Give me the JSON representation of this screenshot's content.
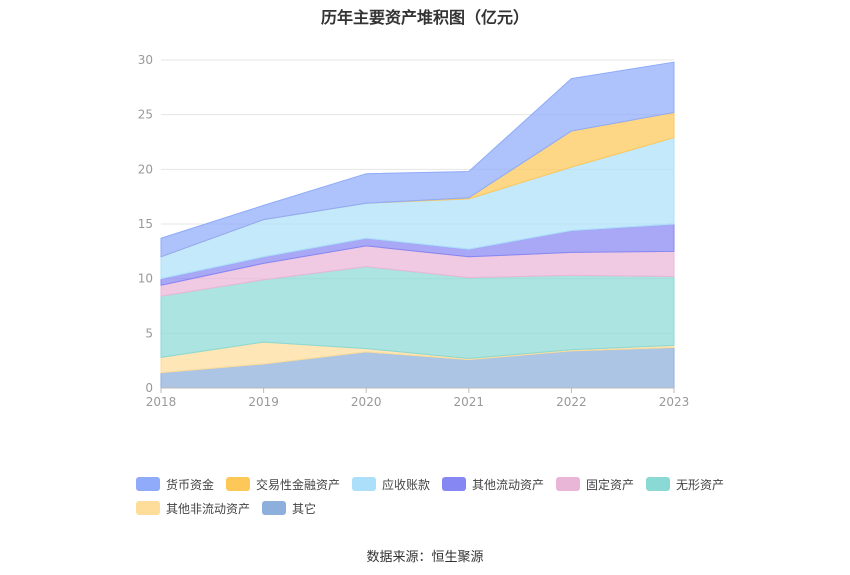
{
  "source_label": "数据来源：恒生聚源",
  "chart_data": {
    "type": "area",
    "stacked": true,
    "title": "历年主要资产堆积图（亿元）",
    "x": [
      "2018",
      "2019",
      "2020",
      "2021",
      "2022",
      "2023"
    ],
    "ylim": [
      0,
      30
    ],
    "yticks": [
      "0",
      "5",
      "10",
      "15",
      "20",
      "25",
      "30"
    ],
    "grid": true,
    "legend_position": "bottom",
    "series": [
      {
        "name": "其它",
        "color": "#8eaedb",
        "values": [
          1.4,
          2.2,
          3.3,
          2.6,
          3.4,
          3.7
        ]
      },
      {
        "name": "其他非流动资产",
        "color": "#fedd9a",
        "values": [
          1.4,
          2.0,
          0.3,
          0.1,
          0.1,
          0.2
        ]
      },
      {
        "name": "无形资产",
        "color": "#8bd9d4",
        "values": [
          5.6,
          5.7,
          7.5,
          7.4,
          6.8,
          6.3
        ]
      },
      {
        "name": "固定资产",
        "color": "#eab6d8",
        "values": [
          1.0,
          1.5,
          1.9,
          1.9,
          2.1,
          2.3
        ]
      },
      {
        "name": "其他流动资产",
        "color": "#8687f2",
        "values": [
          0.6,
          0.6,
          0.7,
          0.7,
          2.0,
          2.5
        ]
      },
      {
        "name": "应收账款",
        "color": "#ace0fa",
        "values": [
          2.0,
          3.4,
          3.2,
          4.6,
          5.8,
          7.9
        ]
      },
      {
        "name": "交易性金融资产",
        "color": "#fdc858",
        "values": [
          0.0,
          0.0,
          0.0,
          0.1,
          3.3,
          2.3
        ]
      },
      {
        "name": "货币资金",
        "color": "#8fabfa",
        "values": [
          1.7,
          1.3,
          2.7,
          2.4,
          4.8,
          4.6
        ]
      }
    ],
    "legend_order": [
      "货币资金",
      "交易性金融资产",
      "应收账款",
      "其他流动资产",
      "固定资产",
      "无形资产",
      "其他非流动资产",
      "其它"
    ]
  }
}
